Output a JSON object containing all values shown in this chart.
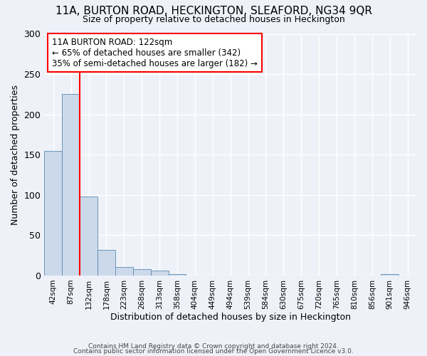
{
  "title": "11A, BURTON ROAD, HECKINGTON, SLEAFORD, NG34 9QR",
  "subtitle": "Size of property relative to detached houses in Heckington",
  "xlabel": "Distribution of detached houses by size in Heckington",
  "ylabel": "Number of detached properties",
  "bar_labels": [
    "42sqm",
    "87sqm",
    "132sqm",
    "178sqm",
    "223sqm",
    "268sqm",
    "313sqm",
    "358sqm",
    "404sqm",
    "449sqm",
    "494sqm",
    "539sqm",
    "584sqm",
    "630sqm",
    "675sqm",
    "720sqm",
    "765sqm",
    "810sqm",
    "856sqm",
    "901sqm",
    "946sqm"
  ],
  "bar_values": [
    155,
    225,
    98,
    32,
    11,
    8,
    6,
    2,
    0,
    0,
    0,
    0,
    0,
    0,
    0,
    0,
    0,
    0,
    0,
    2,
    0
  ],
  "bar_color": "#ccd9ea",
  "bar_edge_color": "#5a8ab0",
  "ylim": [
    0,
    300
  ],
  "yticks": [
    0,
    50,
    100,
    150,
    200,
    250,
    300
  ],
  "annotation_text": "11A BURTON ROAD: 122sqm\n← 65% of detached houses are smaller (342)\n35% of semi-detached houses are larger (182) →",
  "annotation_box_color": "white",
  "annotation_box_edge": "red",
  "footer_line1": "Contains HM Land Registry data © Crown copyright and database right 2024.",
  "footer_line2": "Contains public sector information licensed under the Open Government Licence v3.0.",
  "background_color": "#eef2f8",
  "grid_color": "#ffffff",
  "title_fontsize": 11,
  "subtitle_fontsize": 9
}
